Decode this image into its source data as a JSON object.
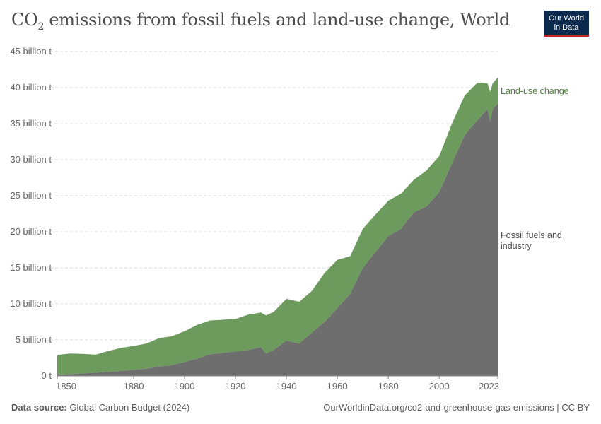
{
  "title_main": "CO",
  "title_sub": "2",
  "title_rest": " emissions from fossil fuels and land-use change, World",
  "logo": {
    "line1": "Our World",
    "line2": "in Data",
    "bg": "#0c2a4d",
    "accent": "#c1272d"
  },
  "footer": {
    "source_label": "Data source:",
    "source_value": "Global Carbon Budget (2024)",
    "link": "OurWorldinData.org/co2-and-greenhouse-gas-emissions | CC BY"
  },
  "colors": {
    "fossil": "#6e6e6e",
    "landuse": "#6d9b5d",
    "landuse_label": "#4f7d3e",
    "fossil_label": "#4d4d4d"
  },
  "chart_data": {
    "type": "area",
    "stacked": true,
    "x": [
      1850,
      1855,
      1860,
      1865,
      1870,
      1875,
      1880,
      1885,
      1890,
      1895,
      1900,
      1905,
      1910,
      1915,
      1920,
      1925,
      1930,
      1932,
      1935,
      1940,
      1945,
      1950,
      1955,
      1960,
      1965,
      1970,
      1975,
      1980,
      1985,
      1990,
      1995,
      2000,
      2005,
      2010,
      2015,
      2019,
      2020,
      2021,
      2023
    ],
    "series": [
      {
        "name": "Fossil fuels and industry",
        "values": [
          0.2,
          0.26,
          0.36,
          0.45,
          0.55,
          0.7,
          0.85,
          1.0,
          1.3,
          1.5,
          1.95,
          2.4,
          3.0,
          3.2,
          3.4,
          3.6,
          4.0,
          3.1,
          3.6,
          4.9,
          4.5,
          6.0,
          7.5,
          9.4,
          11.4,
          15.0,
          17.2,
          19.4,
          20.4,
          22.7,
          23.5,
          25.5,
          29.5,
          33.4,
          35.5,
          37.0,
          35.3,
          37.0,
          37.8
        ]
      },
      {
        "name": "Land-use change",
        "values": [
          2.7,
          2.85,
          2.7,
          2.5,
          2.9,
          3.2,
          3.3,
          3.5,
          3.95,
          4.0,
          4.25,
          4.7,
          4.7,
          4.6,
          4.5,
          4.9,
          4.8,
          5.3,
          5.3,
          5.8,
          5.8,
          5.8,
          6.8,
          6.7,
          5.2,
          5.4,
          5.2,
          4.9,
          4.9,
          4.5,
          5.0,
          5.0,
          5.5,
          5.5,
          5.2,
          3.6,
          4.1,
          3.6,
          3.6
        ]
      }
    ],
    "ylim": [
      0,
      45
    ],
    "yticks": [
      0,
      5,
      10,
      15,
      20,
      25,
      30,
      35,
      40,
      45
    ],
    "ytick_labels": [
      "0 t",
      "5 billion t",
      "10 billion t",
      "15 billion t",
      "20 billion t",
      "25 billion t",
      "30 billion t",
      "35 billion t",
      "40 billion t",
      "45 billion t"
    ],
    "xlim": [
      1850,
      2023
    ],
    "xticks": [
      1850,
      1880,
      1900,
      1920,
      1940,
      1960,
      1980,
      2000,
      2023
    ],
    "xtick_labels": [
      "1850",
      "1880",
      "1900",
      "1920",
      "1940",
      "1960",
      "1980",
      "2000",
      "2023"
    ],
    "grid": true,
    "series_labels": {
      "landuse": "Land-use change",
      "fossil_line1": "Fossil fuels and",
      "fossil_line2": "industry"
    }
  }
}
